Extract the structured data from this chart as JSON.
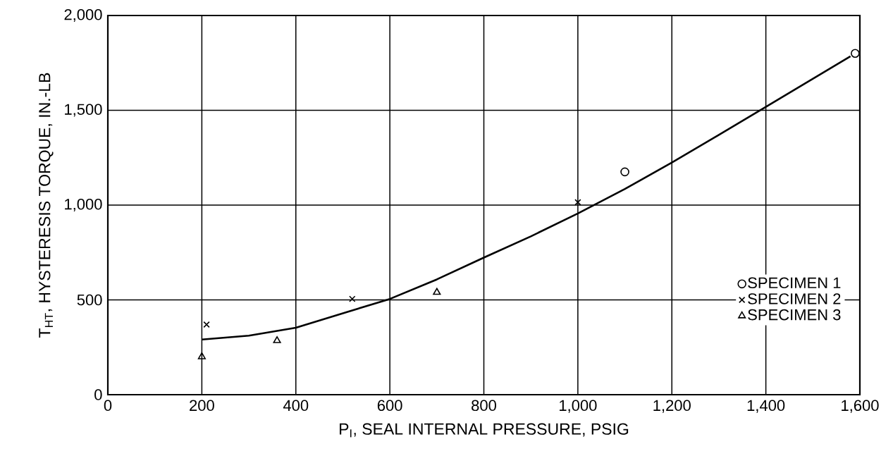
{
  "chart_data": {
    "type": "scatter",
    "xlabel": "P$_{I}$, SEAL INTERNAL PRESSURE, PSIG",
    "ylabel": "T$_{HT}$, HYSTERESIS TORQUE, IN.-LB",
    "xlim": [
      0,
      1600
    ],
    "ylim": [
      0,
      2000
    ],
    "xticks": [
      0,
      200,
      400,
      600,
      800,
      {
        "value": 1000,
        "label": "1,000"
      },
      {
        "value": 1200,
        "label": "1,200"
      },
      {
        "value": 1400,
        "label": "1,400"
      },
      {
        "value": 1600,
        "label": "1,600"
      }
    ],
    "yticks": [
      0,
      500,
      {
        "value": 1000,
        "label": "1,000"
      },
      {
        "value": 1500,
        "label": "1,500"
      },
      {
        "value": 2000,
        "label": "2,000"
      }
    ],
    "grid": true,
    "legend": "right",
    "series": [
      {
        "name": "SPECIMEN 1",
        "color": "#000000",
        "marker": "circle",
        "x": [
          1100,
          1590
        ],
        "values": [
          1175,
          1800
        ]
      },
      {
        "name": "SPECIMEN 2",
        "color": "#000000",
        "marker": "cross",
        "x": [
          210,
          520,
          1000
        ],
        "values": [
          370,
          505,
          1015
        ]
      },
      {
        "name": "SPECIMEN 3",
        "color": "#000000",
        "marker": "triangle",
        "x": [
          200,
          360,
          700
        ],
        "values": [
          200,
          285,
          540
        ]
      },
      {
        "type": "line",
        "color": "#000000",
        "marker": "none",
        "line_style": "solid",
        "x": [
          200,
          300,
          400,
          510,
          600,
          700,
          800,
          900,
          1000,
          1100,
          1200,
          1300,
          1400,
          1580
        ],
        "values": [
          291,
          311,
          353,
          437,
          505,
          608,
          723,
          835,
          956,
          1085,
          1224,
          1370,
          1518,
          1785
        ]
      }
    ]
  }
}
